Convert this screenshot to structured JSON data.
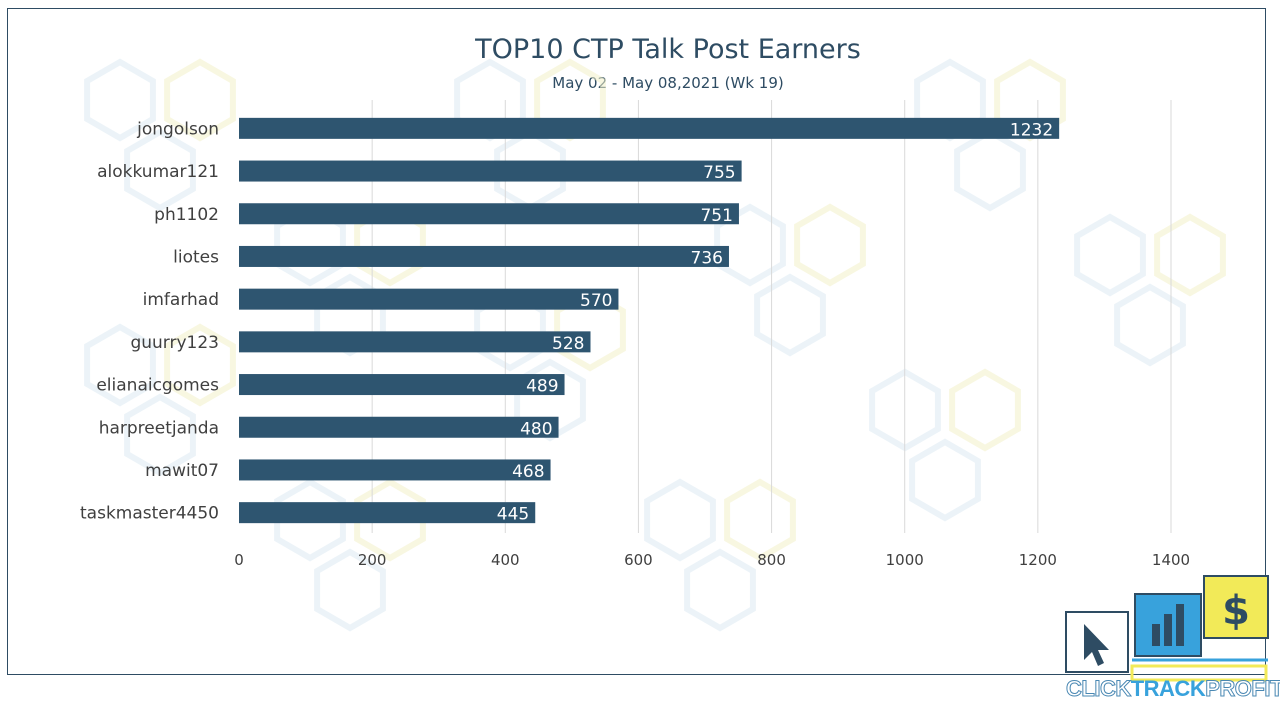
{
  "colors": {
    "bar": "#2e5570",
    "title": "#2e4c63",
    "label": "#404040",
    "grid": "#d9d9d9",
    "logo_blue": "#38a2dc",
    "logo_yellow": "#f2ea58"
  },
  "chart_data": {
    "type": "bar",
    "orientation": "horizontal",
    "title": "TOP10 CTP Talk Post Earners",
    "subtitle": "May 02 - May 08,2021 (Wk 19)",
    "categories": [
      "jongolson",
      "alokkumar121",
      "ph1102",
      "liotes",
      "imfarhad",
      "guurry123",
      "elianaicgomes",
      "harpreetjanda",
      "mawit07",
      "taskmaster4450"
    ],
    "values": [
      1232,
      755,
      751,
      736,
      570,
      528,
      489,
      480,
      468,
      445
    ],
    "xlim": [
      0,
      1400
    ],
    "xticks": [
      0,
      200,
      400,
      600,
      800,
      1000,
      1200,
      1400
    ],
    "grid": "vertical",
    "data_labels": "inside-end",
    "legend": "none"
  },
  "logo": {
    "text_click": "CLICK",
    "text_track": "TRACK",
    "text_profit": "PROFIT",
    "icons": [
      "cursor-icon",
      "bar-chart-icon",
      "dollar-icon"
    ]
  }
}
